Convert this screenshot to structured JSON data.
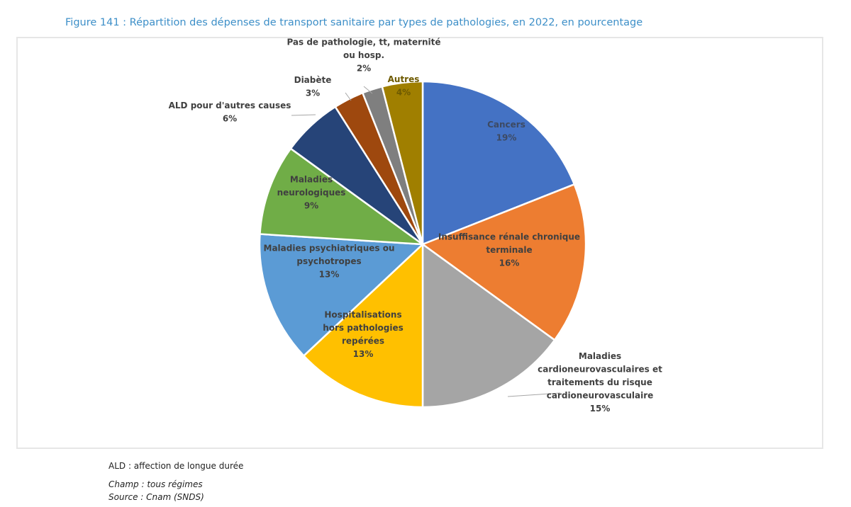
{
  "figure_title": "Figure 141 : Répartition des dépenses de transport sanitaire par types de pathologies, en 2022, en pourcentage",
  "chart_data": {
    "type": "pie",
    "title": "Figure 141 : Répartition des dépenses de transport sanitaire par types de pathologies, en 2022, en pourcentage",
    "unit": "%",
    "start": "12 o'clock, clockwise",
    "slices": [
      {
        "label": [
          "Cancers"
        ],
        "value": 19,
        "display": "19%",
        "color": "#4472c4",
        "label_color": "#3d4a63",
        "inside": true
      },
      {
        "label": [
          "Insuffisance rénale chronique",
          "terminale"
        ],
        "value": 16,
        "display": "16%",
        "color": "#ed7d31",
        "label_color": "#404040",
        "inside": true
      },
      {
        "label": [
          "Maladies",
          "cardioneurovasculaires et",
          "traitements du risque",
          "cardioneurovasculaire"
        ],
        "value": 15,
        "display": "15%",
        "color": "#a5a5a5",
        "label_color": "#404040",
        "inside": false
      },
      {
        "label": [
          "Hospitalisations",
          "hors pathologies",
          "repérées"
        ],
        "value": 13,
        "display": "13%",
        "color": "#ffc000",
        "label_color": "#404040",
        "inside": true
      },
      {
        "label": [
          "Maladies psychiatriques ou",
          "psychotropes"
        ],
        "value": 13,
        "display": "13%",
        "color": "#5b9bd5",
        "label_color": "#404040",
        "inside": true
      },
      {
        "label": [
          "Maladies",
          "neurologiques"
        ],
        "value": 9,
        "display": "9%",
        "color": "#70ad47",
        "label_color": "#404040",
        "inside": true
      },
      {
        "label": [
          "ALD pour d'autres causes"
        ],
        "value": 6,
        "display": "6%",
        "color": "#264478",
        "label_color": "#404040",
        "inside": false
      },
      {
        "label": [
          "Diabète"
        ],
        "value": 3,
        "display": "3%",
        "color": "#9e480e",
        "label_color": "#404040",
        "inside": false
      },
      {
        "label": [
          "Pas de pathologie, tt, maternité",
          "ou hosp."
        ],
        "value": 2,
        "display": "2%",
        "color": "#7f7f7f",
        "label_color": "#404040",
        "inside": false
      },
      {
        "label": [
          "Autres"
        ],
        "value": 4,
        "display": "4%",
        "color": "#a07f00",
        "label_color": "#6e5a00",
        "inside": true
      }
    ]
  },
  "notes": {
    "abbrev": "ALD : affection de longue durée",
    "champ": "Champ : tous régimes",
    "source": "Source : Cnam (SNDS)"
  }
}
